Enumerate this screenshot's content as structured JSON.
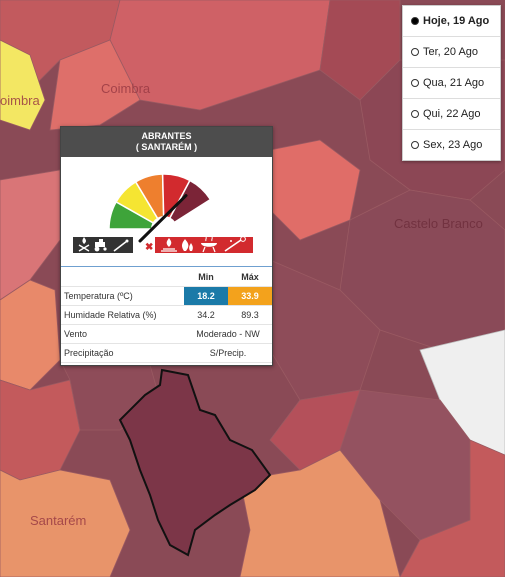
{
  "map": {
    "labels": {
      "coimbra": "Coimbra",
      "coimbra_partial": "oimbra",
      "castelo_branco": "Castelo Branco",
      "santarem": "Santarém"
    }
  },
  "days": [
    {
      "label": "Hoje, 19 Ago",
      "selected": true
    },
    {
      "label": "Ter, 20 Ago",
      "selected": false
    },
    {
      "label": "Qua, 21 Ago",
      "selected": false
    },
    {
      "label": "Qui, 22 Ago",
      "selected": false
    },
    {
      "label": "Sex, 23 Ago",
      "selected": false
    }
  ],
  "popup": {
    "title": "ABRANTES",
    "subtitle": "( SANTARÉM )",
    "risk_level": 4,
    "risk_level_count": 5,
    "risk_colors": [
      "#3ea43a",
      "#f5e532",
      "#ee7f2e",
      "#d22a2e",
      "#7b2437"
    ],
    "icons_allowed": [
      "campfire-icon",
      "tractor-icon",
      "rocket-firework-icon"
    ],
    "icons_forbidden": [
      "bonfire-icon",
      "burning-icon",
      "barbecue-icon",
      "fireworks-icon"
    ],
    "table": {
      "col_min": "Min",
      "col_max": "Máx",
      "rows": {
        "temp_label": "Temperatura (ºC)",
        "temp_min": "18.2",
        "temp_max": "33.9",
        "hum_label": "Humidade Relativa (%)",
        "hum_min": "34.2",
        "hum_max": "89.3",
        "wind_label": "Vento",
        "wind_value": "Moderado - NW",
        "precip_label": "Precipitação",
        "precip_value": "S/Precip."
      }
    }
  }
}
